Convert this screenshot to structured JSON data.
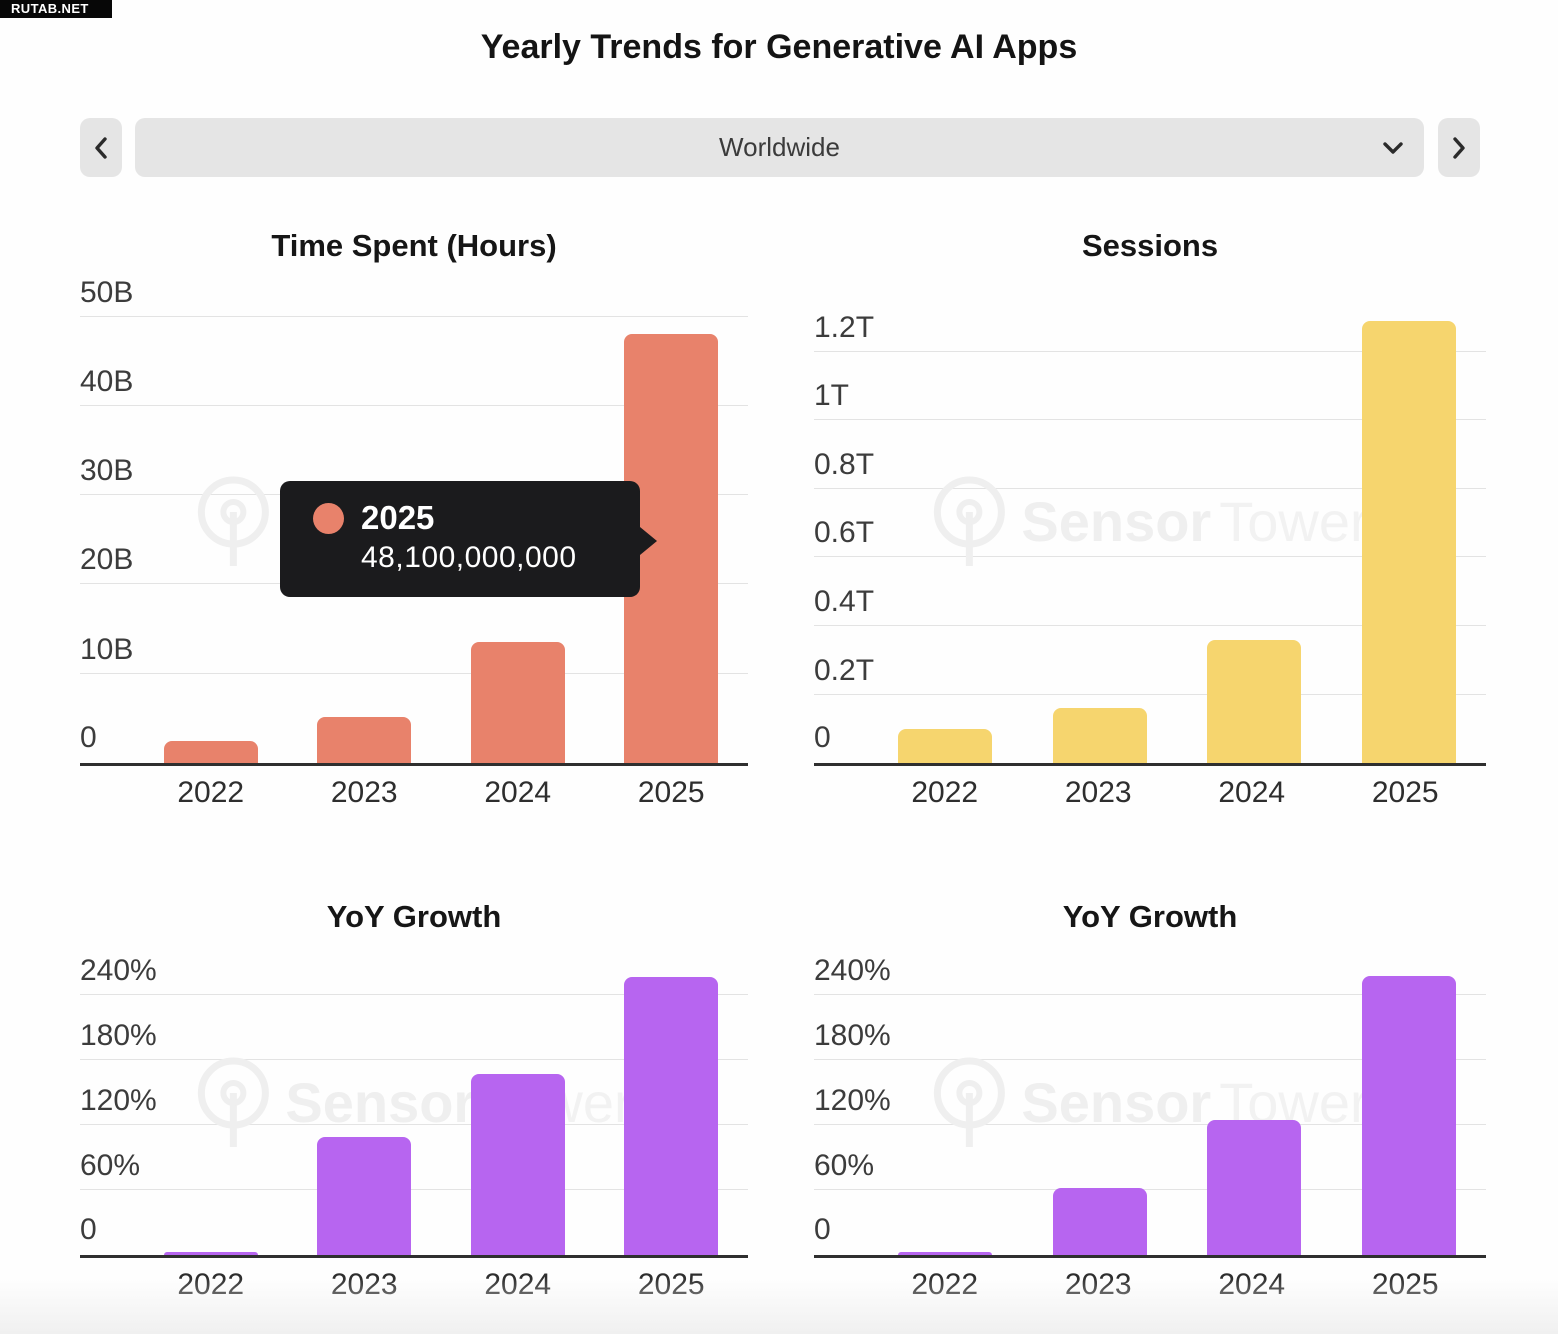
{
  "badge": {
    "label": "RUTAB.NET"
  },
  "page_title": "Yearly Trends for Generative AI Apps",
  "selector": {
    "value": "Worldwide",
    "prev_icon": "chevron-left",
    "next_icon": "chevron-right",
    "caret_icon": "chevron-down"
  },
  "watermark": {
    "brand_bold": "Sensor",
    "brand_light": "Tower",
    "logo": "sensor-tower-circle-logo"
  },
  "colors": {
    "salmon": "#e8826b",
    "yellow": "#f6d56e",
    "purple": "#b765f0",
    "axis": "#2f2f2f",
    "gridline": "#e3e3e3",
    "tooltip_bg": "#1b1b1d",
    "control_bg": "#e5e5e5"
  },
  "tooltip": {
    "year": "2025",
    "value": "48,100,000,000",
    "dot_color": "#e8826b",
    "series": "Time Spent (Hours)"
  },
  "chart_data": [
    {
      "type": "bar",
      "title": "Time Spent (Hours)",
      "categories": [
        "2022",
        "2023",
        "2024",
        "2025"
      ],
      "values": [
        2.5,
        5.2,
        13.6,
        48.1
      ],
      "value_suffix": "B",
      "ylim": [
        0,
        54.1
      ],
      "yticks": [
        {
          "value": 0,
          "label": "0"
        },
        {
          "value": 10,
          "label": "10B"
        },
        {
          "value": 20,
          "label": "20B"
        },
        {
          "value": 30,
          "label": "30B"
        },
        {
          "value": 40,
          "label": "40B"
        },
        {
          "value": 50,
          "label": "50B"
        }
      ],
      "color": "#e8826b",
      "grid": true,
      "legend": "none"
    },
    {
      "type": "bar",
      "title": "Sessions",
      "categories": [
        "2022",
        "2023",
        "2024",
        "2025"
      ],
      "values": [
        0.1,
        0.16,
        0.36,
        1.29
      ],
      "value_suffix": "T",
      "ylim": [
        0,
        1.41
      ],
      "yticks": [
        {
          "value": 0,
          "label": "0"
        },
        {
          "value": 0.2,
          "label": "0.2T"
        },
        {
          "value": 0.4,
          "label": "0.4T"
        },
        {
          "value": 0.6,
          "label": "0.6T"
        },
        {
          "value": 0.8,
          "label": "0.8T"
        },
        {
          "value": 1,
          "label": "1T"
        },
        {
          "value": 1.2,
          "label": "1.2T"
        }
      ],
      "color": "#f6d56e",
      "grid": true,
      "legend": "none"
    },
    {
      "type": "bar",
      "title": "YoY Growth",
      "categories": [
        "2022",
        "2023",
        "2024",
        "2025"
      ],
      "values": [
        2,
        109,
        167,
        256
      ],
      "value_suffix": "%",
      "ylim": [
        0,
        281
      ],
      "yticks": [
        {
          "value": 0,
          "label": "0"
        },
        {
          "value": 60,
          "label": "60%"
        },
        {
          "value": 120,
          "label": "120%"
        },
        {
          "value": 180,
          "label": "180%"
        },
        {
          "value": 240,
          "label": "240%"
        }
      ],
      "color": "#b765f0",
      "grid": true,
      "legend": "none"
    },
    {
      "type": "bar",
      "title": "YoY Growth",
      "categories": [
        "2022",
        "2023",
        "2024",
        "2025"
      ],
      "values": [
        2,
        62,
        124,
        257
      ],
      "value_suffix": "%",
      "ylim": [
        0,
        281
      ],
      "yticks": [
        {
          "value": 0,
          "label": "0"
        },
        {
          "value": 60,
          "label": "60%"
        },
        {
          "value": 120,
          "label": "120%"
        },
        {
          "value": 180,
          "label": "180%"
        },
        {
          "value": 240,
          "label": "240%"
        }
      ],
      "color": "#b765f0",
      "grid": true,
      "legend": "none"
    }
  ]
}
